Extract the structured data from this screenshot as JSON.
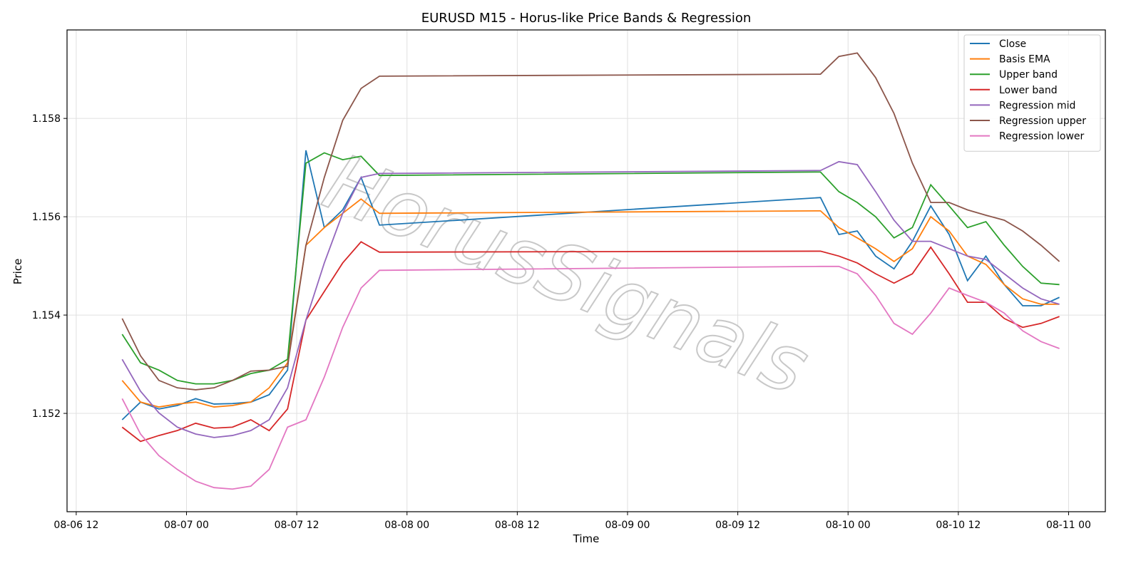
{
  "chart_data": {
    "type": "line",
    "title": "EURUSD M15 - Horus-like Price Bands & Regression",
    "x_label": "Time",
    "y_label": "Price",
    "watermark": "HorusSignals",
    "grid": true,
    "legend": "upper right",
    "xlim": [
      "08-06 11",
      "08-11 04"
    ],
    "xticks": [
      "08-06 12",
      "08-07 00",
      "08-07 12",
      "08-08 00",
      "08-08 12",
      "08-09 00",
      "08-09 12",
      "08-10 00",
      "08-10 12",
      "08-11 00"
    ],
    "ylim": [
      1.15,
      1.1598
    ],
    "yticks": [
      1.152,
      1.154,
      1.156,
      1.158
    ],
    "x": [
      "08-06 17",
      "08-06 19",
      "08-06 21",
      "08-06 23",
      "08-07 01",
      "08-07 03",
      "08-07 05",
      "08-07 07",
      "08-07 09",
      "08-07 11",
      "08-07 13",
      "08-07 15",
      "08-07 17",
      "08-07 19",
      "08-07 21",
      "08-09 21",
      "08-09 23",
      "08-10 01",
      "08-10 03",
      "08-10 05",
      "08-10 07",
      "08-10 09",
      "08-10 11",
      "08-10 13",
      "08-10 15",
      "08-10 17",
      "08-10 19",
      "08-10 21",
      "08-10 23"
    ],
    "series": [
      {
        "name": "Close",
        "color": "#1f77b4",
        "values": [
          1.15187,
          1.15223,
          1.15209,
          1.15216,
          1.1523,
          1.15219,
          1.1522,
          1.15223,
          1.15238,
          1.15288,
          1.15735,
          1.15578,
          1.15614,
          1.1568,
          1.15583,
          1.15639,
          1.15564,
          1.15571,
          1.1552,
          1.15494,
          1.1555,
          1.15622,
          1.15564,
          1.1547,
          1.1552,
          1.15462,
          1.15419,
          1.15419,
          1.15436
        ]
      },
      {
        "name": "Basis EMA",
        "color": "#ff7f0e",
        "values": [
          1.15267,
          1.15223,
          1.15213,
          1.15219,
          1.15223,
          1.15213,
          1.15216,
          1.15223,
          1.15252,
          1.15303,
          1.15542,
          1.15578,
          1.15607,
          1.15636,
          1.15607,
          1.15612,
          1.15578,
          1.15557,
          1.15535,
          1.15509,
          1.15535,
          1.156,
          1.15571,
          1.1552,
          1.15503,
          1.15462,
          1.15433,
          1.15422,
          1.15422
        ]
      },
      {
        "name": "Upper band",
        "color": "#2ca02c",
        "values": [
          1.15361,
          1.15303,
          1.15288,
          1.15267,
          1.1526,
          1.1526,
          1.15267,
          1.15281,
          1.15288,
          1.1531,
          1.15709,
          1.1573,
          1.15716,
          1.15723,
          1.15684,
          1.15691,
          1.15651,
          1.15629,
          1.156,
          1.15557,
          1.15578,
          1.15665,
          1.15622,
          1.15578,
          1.1559,
          1.15542,
          1.15499,
          1.15465,
          1.15462
        ]
      },
      {
        "name": "Lower band",
        "color": "#d62728",
        "values": [
          1.15172,
          1.15143,
          1.15155,
          1.15165,
          1.1518,
          1.1517,
          1.15172,
          1.15187,
          1.15165,
          1.15209,
          1.1539,
          1.15448,
          1.15506,
          1.15549,
          1.15528,
          1.1553,
          1.1552,
          1.15506,
          1.15484,
          1.15465,
          1.15484,
          1.15538,
          1.15484,
          1.15426,
          1.15426,
          1.15393,
          1.15375,
          1.15383,
          1.15397
        ]
      },
      {
        "name": "Regression mid",
        "color": "#9467bd",
        "values": [
          1.1531,
          1.15245,
          1.15201,
          1.15172,
          1.15158,
          1.15151,
          1.15155,
          1.15165,
          1.15187,
          1.15252,
          1.1539,
          1.15506,
          1.15607,
          1.1568,
          1.15688,
          1.15694,
          1.15712,
          1.15706,
          1.15651,
          1.15593,
          1.1555,
          1.1555,
          1.15535,
          1.1552,
          1.15513,
          1.15484,
          1.15455,
          1.15433,
          1.15422
        ]
      },
      {
        "name": "Regression upper",
        "color": "#8c564b",
        "values": [
          1.15393,
          1.15317,
          1.15267,
          1.15252,
          1.15248,
          1.15252,
          1.15267,
          1.15286,
          1.15288,
          1.15296,
          1.15542,
          1.1568,
          1.15796,
          1.15861,
          1.15886,
          1.1589,
          1.15926,
          1.15933,
          1.15883,
          1.1581,
          1.15709,
          1.15629,
          1.15629,
          1.15614,
          1.15603,
          1.15593,
          1.15571,
          1.15542,
          1.15509
        ]
      },
      {
        "name": "Regression lower",
        "color": "#e377c2",
        "values": [
          1.1523,
          1.15158,
          1.15114,
          1.15086,
          1.15062,
          1.15049,
          1.15046,
          1.15052,
          1.15086,
          1.15172,
          1.15187,
          1.15274,
          1.15375,
          1.15455,
          1.15491,
          1.15499,
          1.15499,
          1.15484,
          1.1544,
          1.15383,
          1.15361,
          1.15404,
          1.15455,
          1.1544,
          1.15426,
          1.15404,
          1.15368,
          1.15346,
          1.15332
        ]
      }
    ]
  }
}
